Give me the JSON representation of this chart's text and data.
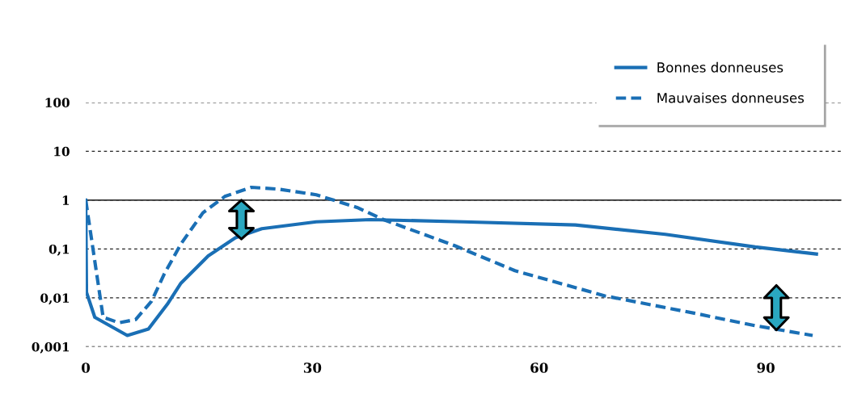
{
  "chart_data": {
    "type": "line",
    "log": "y",
    "xlim": [
      0,
      100
    ],
    "ylim": [
      0.001,
      100
    ],
    "xticks": [
      0,
      30,
      60,
      90
    ],
    "yticks": [
      {
        "value": 0.001,
        "label": "0,001"
      },
      {
        "value": 0.01,
        "label": "0,01"
      },
      {
        "value": 0.1,
        "label": "0,1"
      },
      1,
      10,
      100
    ],
    "grid": "y",
    "legend": "top right",
    "tick_labels": "xy",
    "ref_lines": [
      {
        "axis": "y",
        "value": 1,
        "color": "#333333",
        "line_style": "solid"
      }
    ],
    "series": [
      {
        "name": "Bonnes donneuses",
        "color": "#1a6fb5",
        "line_style": "solid",
        "x": [
          0,
          0.1,
          1.2,
          5.5,
          8.3,
          10.8,
          12.6,
          16.2,
          19.8,
          23.3,
          30.5,
          37.7,
          50,
          64.8,
          76.7,
          88.6,
          96.7
        ],
        "values": [
          1,
          0.013,
          0.004,
          0.0017,
          0.0023,
          0.0074,
          0.02,
          0.072,
          0.17,
          0.26,
          0.36,
          0.4,
          0.36,
          0.31,
          0.2,
          0.11,
          0.079
        ]
      },
      {
        "name": "Mauvaises donneuses",
        "color": "#1a6fb5",
        "line_style": "dashed",
        "x": [
          0,
          2.3,
          4.4,
          6.6,
          8.7,
          10.4,
          12.6,
          15.5,
          18.4,
          21.9,
          25.5,
          30.5,
          35.9,
          39.4,
          48.9,
          56.8,
          68.7,
          80.7,
          88.6,
          96.2
        ],
        "values": [
          1,
          0.004,
          0.0031,
          0.0036,
          0.0085,
          0.031,
          0.127,
          0.55,
          1.19,
          1.83,
          1.68,
          1.29,
          0.71,
          0.4,
          0.116,
          0.036,
          0.011,
          0.0048,
          0.0027,
          0.0017
        ]
      }
    ]
  }
}
